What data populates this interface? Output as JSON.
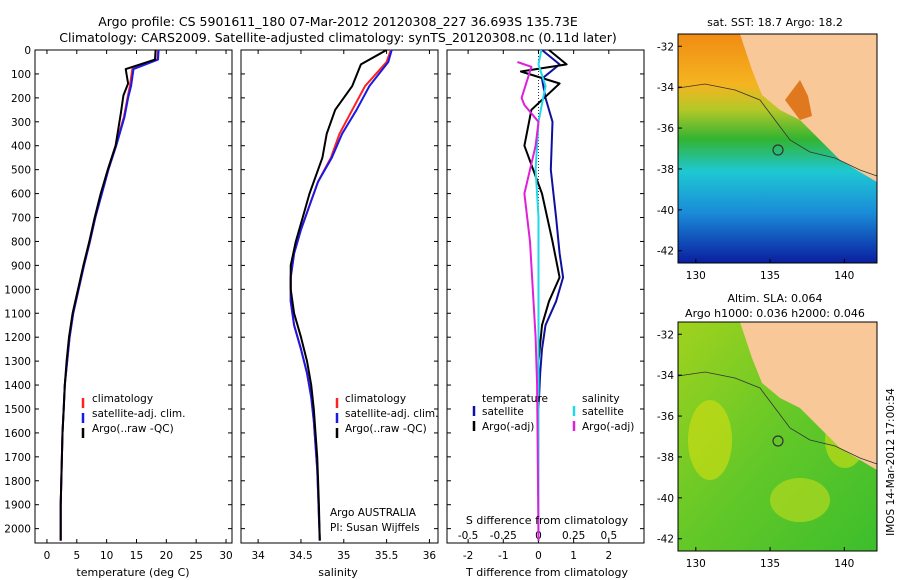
{
  "header": {
    "title_line1": "Argo profile: CS 5901611_180 07-Mar-2012 20120308_227 36.693S 135.73E",
    "title_line2": "Climatology: CARS2009. Satellite-adjusted climatology: synTS_20120308.nc (0.11d later)"
  },
  "side_text": "IMOS 14-Mar-2012 17:00:54",
  "colors": {
    "black": "#000000",
    "red": "#ff2020",
    "blue": "#1a1ae6",
    "navy": "#1010a0",
    "cyan": "#20d8e8",
    "magenta": "#e020d8"
  },
  "chart_data": [
    {
      "type": "line",
      "name": "temperature-profile",
      "xlabel": "temperature (deg C)",
      "xlim": [
        -2,
        31
      ],
      "xticks": [
        "0",
        "5",
        "10",
        "15",
        "20",
        "25",
        "30"
      ],
      "ylim": [
        0,
        2060
      ],
      "yreversed": true,
      "yticks": [
        "0",
        "100",
        "200",
        "300",
        "400",
        "500",
        "600",
        "700",
        "800",
        "900",
        "1000",
        "1100",
        "1200",
        "1300",
        "1400",
        "1500",
        "1600",
        "1700",
        "1800",
        "1900",
        "2000"
      ],
      "legend": [
        "climatology",
        "satellite-adj. clim.",
        "Argo(..raw -QC)"
      ],
      "series": [
        {
          "name": "climatology",
          "color": "red",
          "x": [
            18.6,
            18.5,
            14.3,
            13.9,
            13.5,
            12.9,
            11.5,
            10.2,
            9.1,
            8.1,
            7.2,
            6.2,
            5.3,
            4.4,
            3.8,
            3.4,
            3.0,
            2.8,
            2.6,
            2.5,
            2.4,
            2.3,
            2.3
          ],
          "y": [
            0,
            40,
            80,
            150,
            200,
            280,
            400,
            500,
            600,
            700,
            800,
            900,
            1000,
            1100,
            1200,
            1300,
            1400,
            1500,
            1600,
            1700,
            1800,
            1900,
            2050
          ]
        },
        {
          "name": "satellite-adj. clim.",
          "color": "blue",
          "x": [
            18.7,
            18.6,
            14.5,
            14.1,
            13.6,
            13.0,
            11.6,
            10.3,
            9.2,
            8.1,
            7.2,
            6.2,
            5.3,
            4.4,
            3.8,
            3.4,
            3.0,
            2.8,
            2.6,
            2.5,
            2.4,
            2.3,
            2.3
          ],
          "y": [
            0,
            40,
            80,
            150,
            200,
            280,
            400,
            500,
            600,
            700,
            800,
            900,
            1000,
            1100,
            1200,
            1300,
            1400,
            1500,
            1600,
            1700,
            1800,
            1900,
            2050
          ]
        },
        {
          "name": "Argo(..raw -QC)",
          "color": "black",
          "x": [
            18.2,
            18.1,
            13.2,
            13.6,
            12.8,
            12.4,
            11.5,
            10.2,
            9.0,
            8.0,
            7.1,
            6.1,
            5.2,
            4.3,
            3.7,
            3.3,
            3.0,
            2.8,
            2.6,
            2.5,
            2.4,
            2.3,
            2.3
          ],
          "y": [
            0,
            40,
            80,
            140,
            190,
            260,
            400,
            500,
            600,
            700,
            800,
            900,
            1000,
            1100,
            1200,
            1300,
            1400,
            1500,
            1600,
            1700,
            1800,
            1900,
            2050
          ]
        }
      ]
    },
    {
      "type": "line",
      "name": "salinity-profile",
      "xlabel": "salinity",
      "xlim": [
        33.8,
        36.1
      ],
      "xticks": [
        "34",
        "34.5",
        "35",
        "35.5",
        "36"
      ],
      "ylim": [
        0,
        2060
      ],
      "yreversed": true,
      "legend": [
        "climatology",
        "satellite-adj. clim.",
        "Argo(..raw -QC)"
      ],
      "annotation": [
        "Argo AUSTRALIA",
        "PI: Susan Wijffels"
      ],
      "series": [
        {
          "name": "climatology",
          "color": "red",
          "x": [
            35.55,
            35.5,
            35.25,
            35.1,
            34.95,
            34.85,
            34.7,
            34.6,
            34.5,
            34.42,
            34.38,
            34.38,
            34.42,
            34.5,
            34.57,
            34.62,
            34.65,
            34.67,
            34.69,
            34.7,
            34.71,
            34.72
          ],
          "y": [
            0,
            50,
            150,
            250,
            350,
            450,
            550,
            650,
            750,
            850,
            950,
            1050,
            1150,
            1250,
            1350,
            1450,
            1550,
            1650,
            1750,
            1850,
            1950,
            2050
          ]
        },
        {
          "name": "satellite-adj. clim.",
          "color": "blue",
          "x": [
            35.56,
            35.52,
            35.3,
            35.15,
            34.98,
            34.86,
            34.7,
            34.6,
            34.5,
            34.42,
            34.38,
            34.38,
            34.42,
            34.5,
            34.57,
            34.62,
            34.65,
            34.67,
            34.69,
            34.7,
            34.71,
            34.72
          ],
          "y": [
            0,
            50,
            150,
            250,
            350,
            450,
            550,
            650,
            750,
            850,
            950,
            1050,
            1150,
            1250,
            1350,
            1450,
            1550,
            1650,
            1750,
            1850,
            1950,
            2050
          ]
        },
        {
          "name": "Argo(..raw -QC)",
          "color": "black",
          "x": [
            35.5,
            35.2,
            35.1,
            34.9,
            34.8,
            34.75,
            34.6,
            34.52,
            34.44,
            34.38,
            34.38,
            34.42,
            34.5,
            34.57,
            34.62,
            34.65,
            34.67,
            34.69,
            34.7,
            34.71,
            34.72
          ],
          "y": [
            0,
            60,
            150,
            250,
            350,
            450,
            600,
            700,
            800,
            900,
            1000,
            1100,
            1200,
            1300,
            1400,
            1500,
            1600,
            1700,
            1800,
            1900,
            2050
          ]
        }
      ]
    },
    {
      "type": "line",
      "name": "difference-profile",
      "xlabel": "T difference from climatology",
      "xlabel_top": "S difference from climatology",
      "xlim": [
        -2.6,
        3.0
      ],
      "xticks": [
        "-2",
        "-1",
        "0",
        "1",
        "2"
      ],
      "xticks_top": [
        "-0.5",
        "-0.25",
        "0",
        "0.25",
        "0.5"
      ],
      "ylim": [
        0,
        2060
      ],
      "yreversed": true,
      "legend_left_title": "temperature",
      "legend_right_title": "salinity",
      "legend": [
        "satellite",
        "Argo(-adj)",
        "satellite",
        "Argo(-adj)"
      ],
      "series": [
        {
          "name": "temperature satellite",
          "color": "navy",
          "x": [
            0.1,
            0.6,
            0.1,
            0.2,
            0.4,
            0.35,
            0.5,
            0.6,
            0.7,
            0.5,
            0.2,
            0.1,
            0.05,
            0,
            0,
            0,
            0
          ],
          "y": [
            0,
            60,
            120,
            200,
            300,
            500,
            700,
            850,
            950,
            1050,
            1150,
            1250,
            1350,
            1500,
            1700,
            1900,
            2050
          ]
        },
        {
          "name": "temperature Argo(-adj)",
          "color": "black",
          "x": [
            0.3,
            0.8,
            -0.5,
            0.6,
            -0.2,
            -0.4,
            0.1,
            0.4,
            0.6,
            0.3,
            0.1,
            0,
            0,
            0,
            0,
            0
          ],
          "y": [
            0,
            60,
            90,
            140,
            250,
            400,
            600,
            800,
            950,
            1050,
            1150,
            1300,
            1500,
            1700,
            1900,
            2050
          ]
        },
        {
          "name": "salinity satellite",
          "color": "cyan",
          "x": [
            0.02,
            0.0,
            0.05,
            0.0,
            -0.02,
            0,
            0,
            0,
            0,
            0,
            0
          ],
          "y": [
            0,
            60,
            150,
            300,
            500,
            700,
            900,
            1200,
            1500,
            1800,
            2050
          ]
        },
        {
          "name": "salinity Argo(-adj)",
          "color": "magenta",
          "x": [
            -0.15,
            -0.05,
            -0.12,
            -0.1,
            0,
            -0.02,
            -0.1,
            -0.06,
            -0.04,
            -0.02,
            -0.01,
            0
          ],
          "y": [
            50,
            70,
            200,
            230,
            300,
            400,
            600,
            800,
            1000,
            1200,
            1400,
            2050
          ]
        }
      ]
    }
  ],
  "maps": [
    {
      "title": "sat. SST: 18.7 Argo: 18.2",
      "xticks": [
        "130",
        "135",
        "140"
      ],
      "yticks": [
        "-32",
        "-34",
        "-36",
        "-38",
        "-40",
        "-42"
      ]
    },
    {
      "title_line1": "Altim. SLA: 0.064",
      "title_line2": "Argo h1000: 0.036 h2000: 0.046",
      "xticks": [
        "130",
        "135",
        "140"
      ],
      "yticks": [
        "-32",
        "-34",
        "-36",
        "-38",
        "-40",
        "-42"
      ]
    }
  ]
}
